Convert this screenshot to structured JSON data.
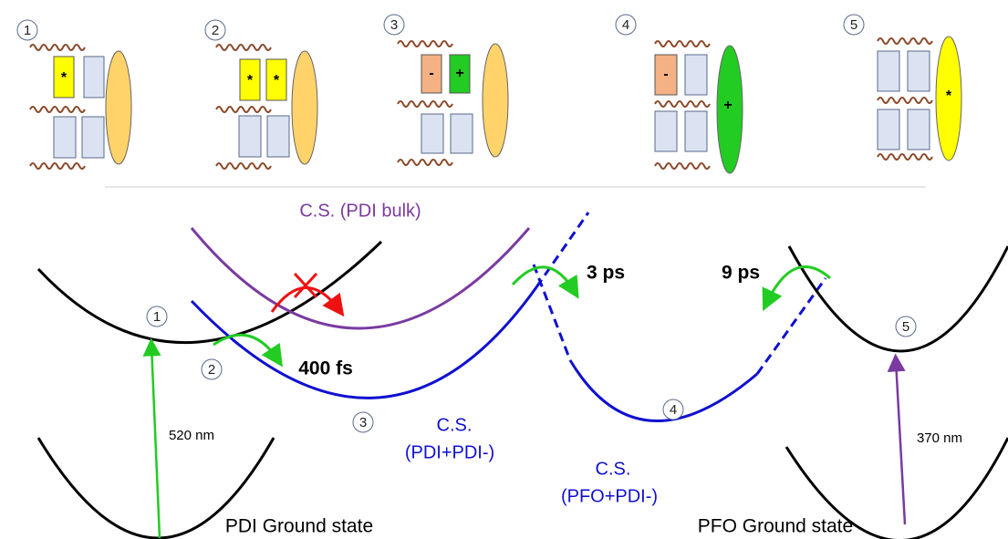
{
  "panels": [
    {
      "number": "1",
      "marks": [
        "*"
      ]
    },
    {
      "number": "2",
      "marks": [
        "*",
        "*"
      ]
    },
    {
      "number": "3",
      "marks": [
        "-",
        "+"
      ]
    },
    {
      "number": "4",
      "marks": [
        "-",
        "+"
      ]
    },
    {
      "number": "5",
      "marks": [
        "*"
      ]
    }
  ],
  "states": [
    "1",
    "2",
    "3",
    "4",
    "5"
  ],
  "curve_labels": {
    "cs_bulk": "C.S. (PDI bulk)",
    "cs_pdi": [
      "C.S.",
      "(PDI+PDI-)"
    ],
    "cs_pfo": [
      "C.S.",
      "(PFO+PDI-)"
    ]
  },
  "times": [
    "400 fs",
    "3 ps",
    "9 ps"
  ],
  "wavelengths": [
    "520 nm",
    "370 nm"
  ],
  "ground_states": [
    "PDI Ground state",
    "PFO Ground state"
  ]
}
